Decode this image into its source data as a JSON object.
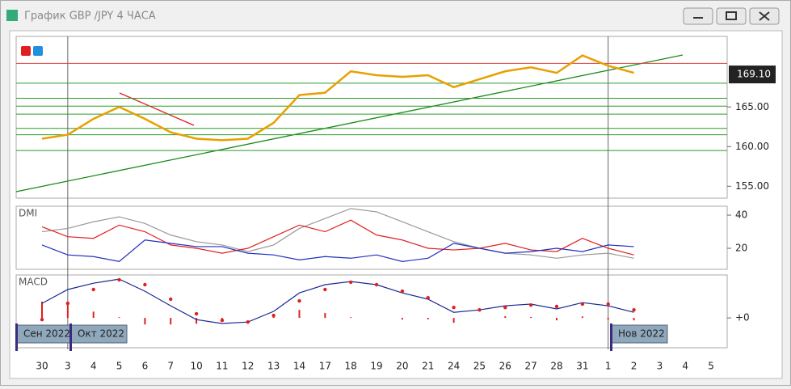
{
  "window": {
    "title": "График GBP /JPY  4 ЧАСА"
  },
  "chart_data": [
    {
      "type": "line",
      "color": "#e8a000",
      "categories": [
        "30",
        "3",
        "4",
        "5",
        "6",
        "7",
        "10",
        "11",
        "12",
        "13",
        "14",
        "17",
        "18",
        "19",
        "20",
        "21",
        "24",
        "25",
        "26",
        "27",
        "28",
        "31",
        "1",
        "2",
        "3",
        "4",
        "5"
      ],
      "values": [
        161,
        161.5,
        163.5,
        165,
        163.5,
        161.8,
        161,
        160.8,
        161,
        163,
        166.5,
        166.8,
        169.5,
        169,
        168.8,
        169,
        167.5,
        168.5,
        169.5,
        170,
        169.3,
        171.5,
        170.2,
        169.3,
        null,
        null,
        null
      ],
      "ylim": [
        153.5,
        173.9
      ],
      "yticks": [
        {
          "value": 155,
          "label": "155.00"
        },
        {
          "value": 160,
          "label": "160.00"
        },
        {
          "value": 165,
          "label": "165.00"
        }
      ],
      "last_price": {
        "value": 169.1,
        "label": "169.10"
      },
      "levels": [
        {
          "value": 170.5,
          "color": "#e04040"
        },
        {
          "value": 168.0,
          "color": "#2a9a2a"
        },
        {
          "value": 166.1,
          "color": "#2a9a2a"
        },
        {
          "value": 165.1,
          "color": "#2a9a2a"
        },
        {
          "value": 164.1,
          "color": "#2a9a2a"
        },
        {
          "value": 162.3,
          "color": "#2a9a2a"
        },
        {
          "value": 161.5,
          "color": "#2a9a2a"
        },
        {
          "value": 159.5,
          "color": "#2a9a2a"
        }
      ]
    },
    {
      "type": "line",
      "title": "DMI",
      "ylim": [
        7.3,
        45.4
      ],
      "yticks": [
        20,
        40
      ],
      "series": [
        {
          "color": "#999999",
          "values": [
            30,
            32,
            36,
            39,
            35,
            28,
            24,
            22,
            18,
            22,
            32,
            38,
            44,
            42,
            36,
            30,
            24,
            20,
            17,
            16,
            14,
            16,
            17,
            14,
            null,
            null,
            null
          ]
        },
        {
          "color": "#e02020",
          "values": [
            33,
            27,
            26,
            34,
            30,
            22,
            20,
            17,
            20,
            27,
            34,
            30,
            37,
            28,
            25,
            20,
            19,
            20,
            23,
            19,
            18,
            26,
            20,
            16,
            null,
            null,
            null
          ]
        },
        {
          "color": "#2030c0",
          "values": [
            22,
            16,
            15,
            12,
            25,
            23,
            21,
            21,
            17,
            16,
            13,
            15,
            14,
            16,
            12,
            14,
            23,
            20,
            17,
            18,
            20,
            18,
            22,
            21,
            null,
            null,
            null
          ]
        }
      ]
    },
    {
      "type": "line",
      "title": "MACD",
      "ylim": [
        -1.23,
        1.77
      ],
      "yticks": [
        {
          "value": 0,
          "label": "+0"
        }
      ],
      "month_labels": [
        "Сен 2022",
        "Окт 2022",
        "Нов 2022"
      ],
      "series": [
        {
          "style": "bars",
          "color": "#e02020",
          "values": [
            0.67,
            0.57,
            0.26,
            0.03,
            -0.27,
            -0.27,
            -0.24,
            -0.13,
            0,
            0.17,
            0.33,
            0.2,
            0.03,
            0,
            -0.07,
            -0.06,
            -0.2,
            0,
            0.07,
            0.04,
            -0.1,
            0.06,
            -0.07,
            -0.1,
            null,
            null,
            null
          ]
        },
        {
          "style": "line",
          "color": "#1a2a90",
          "values": [
            0.6,
            1.17,
            1.43,
            1.6,
            1.1,
            0.5,
            -0.07,
            -0.23,
            -0.17,
            0.27,
            1.03,
            1.37,
            1.5,
            1.37,
            1.03,
            0.77,
            0.23,
            0.33,
            0.5,
            0.57,
            0.37,
            0.63,
            0.5,
            0.23,
            null,
            null,
            null
          ]
        },
        {
          "style": "dots",
          "color": "#e02020",
          "values": [
            -0.07,
            0.6,
            1.17,
            1.57,
            1.37,
            0.77,
            0.17,
            -0.1,
            -0.17,
            0.1,
            0.7,
            1.17,
            1.47,
            1.37,
            1.1,
            0.83,
            0.43,
            0.33,
            0.43,
            0.53,
            0.47,
            0.57,
            0.57,
            0.33,
            null,
            null,
            null
          ]
        }
      ]
    }
  ]
}
